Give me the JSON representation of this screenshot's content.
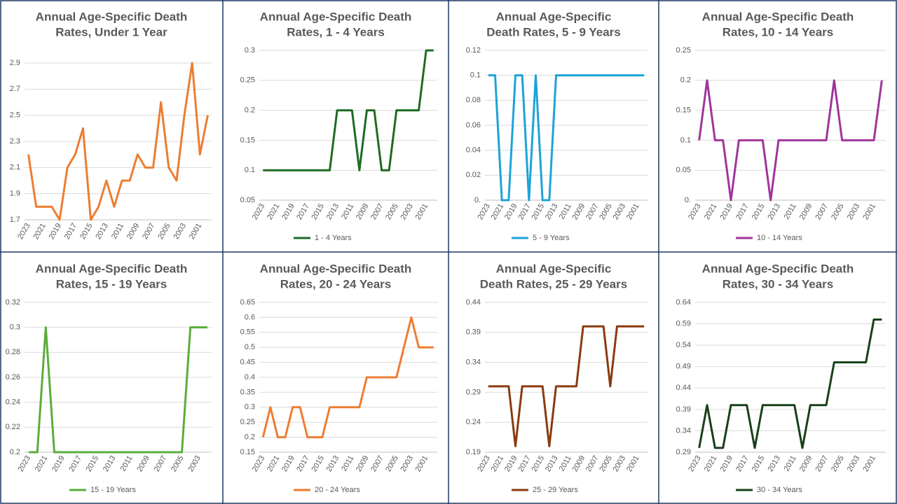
{
  "chart_data": [
    {
      "type": "line",
      "title": [
        "Annual Age-Specific Death",
        "Rates, Under 1 Year"
      ],
      "categories": [
        "2023",
        null,
        "2021",
        null,
        "2019",
        null,
        "2017",
        null,
        "2015",
        null,
        "2013",
        null,
        "2011",
        null,
        "2009",
        null,
        "2007",
        null,
        "2005",
        null,
        "2003",
        null,
        "2001",
        null
      ],
      "series": [
        {
          "color": "#ed7d31",
          "values": [
            2.2,
            1.8,
            1.8,
            1.8,
            1.7,
            2.1,
            2.2,
            2.4,
            1.7,
            1.8,
            2.0,
            1.8,
            2.0,
            2.0,
            2.2,
            2.1,
            2.1,
            2.6,
            2.1,
            2.0,
            2.5,
            2.9,
            2.2,
            2.5
          ]
        }
      ],
      "ylim": [
        1.7,
        2.9
      ],
      "yticks": [
        1.7,
        1.9,
        2.1,
        2.3,
        2.5,
        2.7,
        2.9
      ],
      "grid": true
    },
    {
      "type": "line",
      "title": [
        "Annual Age-Specific Death",
        "Rates, 1 - 4 Years"
      ],
      "categories": [
        "2023",
        null,
        "2021",
        null,
        "2019",
        null,
        "2017",
        null,
        "2015",
        null,
        "2013",
        null,
        "2011",
        null,
        "2009",
        null,
        "2007",
        null,
        "2005",
        null,
        "2003",
        null,
        "2001",
        null
      ],
      "series": [
        {
          "name": "1 - 4 Years",
          "color": "#1e6b23",
          "values": [
            0.1,
            0.1,
            0.1,
            0.1,
            0.1,
            0.1,
            0.1,
            0.1,
            0.1,
            0.1,
            0.2,
            0.2,
            0.2,
            0.1,
            0.2,
            0.2,
            0.1,
            0.1,
            0.2,
            0.2,
            0.2,
            0.2,
            0.3,
            0.3
          ]
        }
      ],
      "ylim": [
        0.05,
        0.3
      ],
      "yticks": [
        0.05,
        0.1,
        0.15,
        0.2,
        0.25,
        0.3
      ],
      "grid": true
    },
    {
      "type": "line",
      "title": [
        "Annual Age-Specific",
        "Death Rates, 5 - 9 Years"
      ],
      "categories": [
        "2023",
        null,
        "2021",
        null,
        "2019",
        null,
        "2017",
        null,
        "2015",
        null,
        "2013",
        null,
        "2011",
        null,
        "2009",
        null,
        "2007",
        null,
        "2005",
        null,
        "2003",
        null,
        "2001",
        null
      ],
      "series": [
        {
          "name": "5 - 9 Years",
          "color": "#1ca3d8",
          "values": [
            0.1,
            0.1,
            0,
            0,
            0.1,
            0.1,
            0,
            0.1,
            0,
            0,
            0.1,
            0.1,
            0.1,
            0.1,
            0.1,
            0.1,
            0.1,
            0.1,
            0.1,
            0.1,
            0.1,
            0.1,
            0.1,
            0.1
          ]
        }
      ],
      "ylim": [
        0,
        0.12
      ],
      "yticks": [
        {
          "value": 0,
          "label": "0."
        },
        0.02,
        0.04,
        0.06,
        0.08,
        0.1,
        0.12
      ],
      "grid": true
    },
    {
      "type": "line",
      "title": [
        "Annual Age-Specific Death",
        "Rates, 10 - 14 Years"
      ],
      "categories": [
        "2023",
        null,
        "2021",
        null,
        "2019",
        null,
        "2017",
        null,
        "2015",
        null,
        "2013",
        null,
        "2011",
        null,
        "2009",
        null,
        "2007",
        null,
        "2005",
        null,
        "2003",
        null,
        "2001",
        null
      ],
      "series": [
        {
          "name": "10 - 14 Years",
          "color": "#a0359b",
          "values": [
            0.1,
            0.2,
            0.1,
            0.1,
            0,
            0.1,
            0.1,
            0.1,
            0.1,
            0,
            0.1,
            0.1,
            0.1,
            0.1,
            0.1,
            0.1,
            0.1,
            0.2,
            0.1,
            0.1,
            0.1,
            0.1,
            0.1,
            0.2
          ]
        }
      ],
      "ylim": [
        0,
        0.25
      ],
      "yticks": [
        {
          "value": 0,
          "label": "0."
        },
        0.05,
        0.1,
        0.15,
        0.2,
        0.25
      ],
      "grid": true
    },
    {
      "type": "line",
      "title": [
        "Annual Age-Specific Death",
        "Rates, 15 - 19 Years"
      ],
      "categories": [
        "2023",
        null,
        "2021",
        null,
        "2019",
        null,
        "2017",
        null,
        "2015",
        null,
        "2013",
        null,
        "2011",
        null,
        "2009",
        null,
        "2007",
        null,
        "2005",
        null,
        "2003",
        null
      ],
      "series": [
        {
          "name": "15 - 19 Years",
          "color": "#5aad3c",
          "values": [
            0.2,
            0.2,
            0.3,
            0.2,
            0.2,
            0.2,
            0.2,
            0.2,
            0.2,
            0.2,
            0.2,
            0.2,
            0.2,
            0.2,
            0.2,
            0.2,
            0.2,
            0.2,
            0.2,
            0.3,
            0.3,
            0.3
          ]
        }
      ],
      "ylim": [
        0.2,
        0.32
      ],
      "yticks": [
        0.2,
        0.22,
        0.24,
        0.26,
        0.28,
        0.3,
        0.32
      ],
      "grid": true
    },
    {
      "type": "line",
      "title": [
        "Annual Age-Specific Death",
        "Rates, 20 - 24 Years"
      ],
      "categories": [
        "2023",
        null,
        "2021",
        null,
        "2019",
        null,
        "2017",
        null,
        "2015",
        null,
        "2013",
        null,
        "2011",
        null,
        "2009",
        null,
        "2007",
        null,
        "2005",
        null,
        "2003",
        null,
        "2001",
        null
      ],
      "series": [
        {
          "name": "20 - 24 Years",
          "color": "#ed7d31",
          "values": [
            0.2,
            0.3,
            0.2,
            0.2,
            0.3,
            0.3,
            0.2,
            0.2,
            0.2,
            0.3,
            0.3,
            0.3,
            0.3,
            0.3,
            0.4,
            0.4,
            0.4,
            0.4,
            0.4,
            0.5,
            0.6,
            0.5,
            0.5,
            0.5
          ]
        }
      ],
      "ylim": [
        0.15,
        0.65
      ],
      "yticks": [
        0.15,
        0.2,
        0.25,
        0.3,
        0.35,
        0.4,
        0.45,
        0.5,
        0.55,
        0.6,
        0.65
      ],
      "grid": true
    },
    {
      "type": "line",
      "title": [
        "Annual Age-Specific",
        "Death Rates, 25 - 29 Years"
      ],
      "categories": [
        "2023",
        null,
        "2021",
        null,
        "2019",
        null,
        "2017",
        null,
        "2015",
        null,
        "2013",
        null,
        "2011",
        null,
        "2009",
        null,
        "2007",
        null,
        "2005",
        null,
        "2003",
        null,
        "2001",
        null
      ],
      "series": [
        {
          "name": "25 - 29 Years",
          "color": "#8b3a0f",
          "values": [
            0.3,
            0.3,
            0.3,
            0.3,
            0.2,
            0.3,
            0.3,
            0.3,
            0.3,
            0.2,
            0.3,
            0.3,
            0.3,
            0.3,
            0.4,
            0.4,
            0.4,
            0.4,
            0.3,
            0.4,
            0.4,
            0.4,
            0.4,
            0.4
          ]
        }
      ],
      "ylim": [
        0.19,
        0.44
      ],
      "yticks": [
        0.19,
        0.24,
        0.29,
        0.34,
        0.39,
        0.44
      ],
      "grid": true
    },
    {
      "type": "line",
      "title": [
        "Annual Age-Specific Death",
        "Rates, 30 - 34 Years"
      ],
      "categories": [
        "2023",
        null,
        "2021",
        null,
        "2019",
        null,
        "2017",
        null,
        "2015",
        null,
        "2013",
        null,
        "2011",
        null,
        "2009",
        null,
        "2007",
        null,
        "2005",
        null,
        "2003",
        null,
        "2001",
        null
      ],
      "series": [
        {
          "name": "30 - 34 Years",
          "color": "#17401a",
          "values": [
            0.3,
            0.4,
            0.3,
            0.3,
            0.4,
            0.4,
            0.4,
            0.3,
            0.4,
            0.4,
            0.4,
            0.4,
            0.4,
            0.3,
            0.4,
            0.4,
            0.4,
            0.5,
            0.5,
            0.5,
            0.5,
            0.5,
            0.6,
            0.6
          ]
        }
      ],
      "ylim": [
        0.29,
        0.64
      ],
      "yticks": [
        0.29,
        0.34,
        0.39,
        0.44,
        0.49,
        0.54,
        0.59,
        0.64
      ],
      "grid": true
    }
  ]
}
